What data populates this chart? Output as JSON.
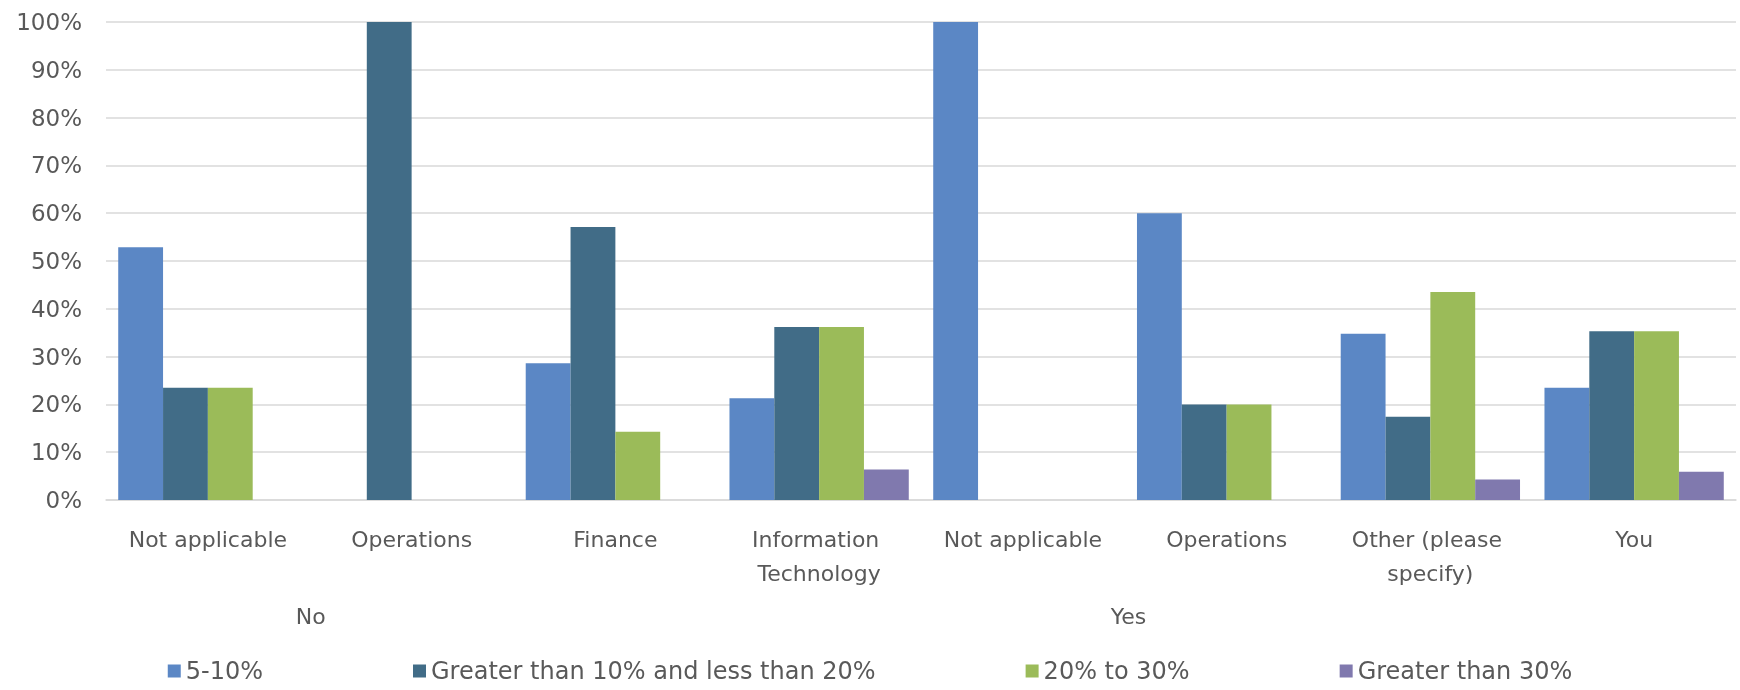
{
  "chart_data": {
    "type": "bar",
    "categories": [
      "Not applicable",
      "Operations",
      "Finance",
      "Information Technology",
      "Not applicable",
      "Operations",
      "Other (please specify)",
      "You"
    ],
    "series": [
      {
        "name": "5-10%",
        "color": "#5b87c5",
        "values": [
          52.9,
          null,
          28.6,
          21.3,
          100,
          60,
          34.8,
          23.5
        ]
      },
      {
        "name": "Greater than 10% and less than 20%",
        "color": "#416c87",
        "values": [
          23.5,
          100,
          57.1,
          36.2,
          null,
          20,
          17.4,
          35.3
        ]
      },
      {
        "name": "20% to 30%",
        "color": "#9bbb59",
        "values": [
          23.5,
          null,
          14.3,
          36.2,
          null,
          20,
          43.5,
          35.3
        ]
      },
      {
        "name": "Greater than 30%",
        "color": "#8079ae",
        "values": [
          null,
          null,
          null,
          6.4,
          null,
          null,
          4.3,
          5.9
        ]
      }
    ],
    "ylim": [
      0,
      100
    ],
    "yticks": [
      {
        "value": 0,
        "label": "0%"
      },
      {
        "value": 10,
        "label": "10%"
      },
      {
        "value": 20,
        "label": "20%"
      },
      {
        "value": 30,
        "label": "30%"
      },
      {
        "value": 40,
        "label": "40%"
      },
      {
        "value": 50,
        "label": "50%"
      },
      {
        "value": 60,
        "label": "60%"
      },
      {
        "value": 70,
        "label": "70%"
      },
      {
        "value": 80,
        "label": "80%"
      },
      {
        "value": 90,
        "label": "90%"
      },
      {
        "value": 100,
        "label": "100%"
      }
    ],
    "grid": "y",
    "legend": "bottom",
    "annotations": [
      "No",
      "Yes"
    ]
  }
}
